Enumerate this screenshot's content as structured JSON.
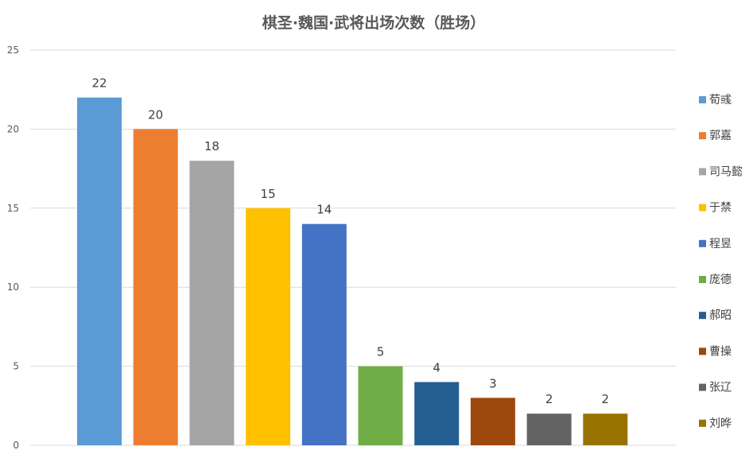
{
  "chart_data": {
    "type": "bar",
    "title": "棋圣·魏国·武将出场次数（胜场）",
    "categories": [
      "荀彧",
      "郭嘉",
      "司马懿",
      "于禁",
      "程昱",
      "庞德",
      "郝昭",
      "曹操",
      "张辽",
      "刘晔"
    ],
    "values": [
      22,
      20,
      18,
      15,
      14,
      5,
      4,
      3,
      2,
      2
    ],
    "colors": [
      "#5b9bd5",
      "#ed7d31",
      "#a5a5a5",
      "#ffc000",
      "#4472c4",
      "#70ad47",
      "#255e91",
      "#9e480e",
      "#636363",
      "#997300"
    ],
    "yticks": [
      0,
      5,
      10,
      15,
      20,
      25
    ],
    "ylim": [
      0,
      25
    ],
    "xlabel": "",
    "ylabel": "",
    "grid": true,
    "legend_position": "right",
    "show_data_labels": true
  }
}
